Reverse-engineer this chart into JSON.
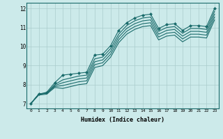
{
  "xlabel": "Humidex (Indice chaleur)",
  "bg_color": "#cceaea",
  "grid_color": "#aacccc",
  "line_color": "#1a6b6b",
  "marker": "D",
  "markersize": 2.0,
  "linewidth": 0.8,
  "xlim": [
    -0.5,
    23.5
  ],
  "ylim": [
    6.75,
    12.3
  ],
  "xticks": [
    0,
    1,
    2,
    3,
    4,
    5,
    6,
    7,
    8,
    9,
    10,
    11,
    12,
    13,
    14,
    15,
    16,
    17,
    18,
    19,
    20,
    21,
    22,
    23
  ],
  "yticks": [
    7,
    8,
    9,
    10,
    11,
    12
  ],
  "series": [
    [
      7.0,
      7.5,
      7.6,
      8.1,
      8.5,
      8.55,
      8.6,
      8.65,
      9.55,
      9.6,
      10.05,
      10.85,
      11.25,
      11.5,
      11.65,
      11.7,
      10.95,
      11.15,
      11.2,
      10.85,
      11.1,
      11.1,
      11.05,
      12.0
    ],
    [
      7.0,
      7.5,
      7.55,
      8.0,
      8.25,
      8.35,
      8.45,
      8.5,
      9.35,
      9.45,
      9.9,
      10.65,
      11.1,
      11.35,
      11.5,
      11.55,
      10.8,
      11.0,
      11.05,
      10.7,
      10.95,
      10.95,
      10.9,
      11.85
    ],
    [
      7.0,
      7.5,
      7.55,
      7.95,
      8.1,
      8.2,
      8.3,
      8.35,
      9.2,
      9.3,
      9.75,
      10.5,
      10.95,
      11.2,
      11.35,
      11.4,
      10.65,
      10.85,
      10.9,
      10.55,
      10.8,
      10.8,
      10.75,
      11.7
    ],
    [
      7.0,
      7.5,
      7.55,
      7.9,
      7.95,
      8.05,
      8.15,
      8.2,
      9.05,
      9.15,
      9.6,
      10.35,
      10.8,
      11.05,
      11.2,
      11.25,
      10.5,
      10.7,
      10.75,
      10.4,
      10.65,
      10.65,
      10.6,
      11.55
    ],
    [
      7.0,
      7.45,
      7.5,
      7.85,
      7.8,
      7.9,
      8.0,
      8.05,
      8.9,
      9.0,
      9.45,
      10.2,
      10.65,
      10.9,
      11.05,
      11.1,
      10.35,
      10.55,
      10.6,
      10.25,
      10.5,
      10.5,
      10.45,
      11.4
    ]
  ]
}
